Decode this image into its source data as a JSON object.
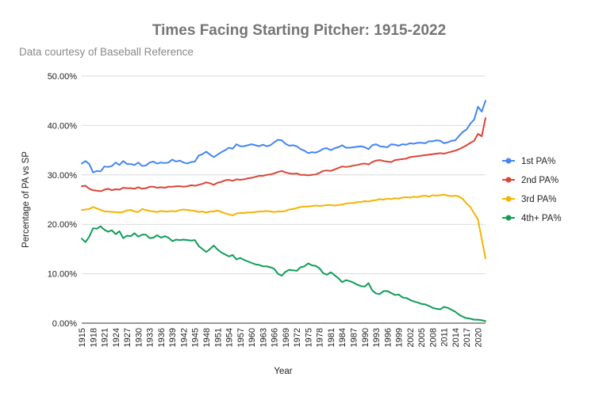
{
  "chart_data": {
    "type": "line",
    "title": "Times Facing Starting Pitcher: 1915-2022",
    "subtitle": "Data courtesy of Baseball Reference",
    "xlabel": "Year",
    "ylabel": "Percentage of PA vs SP",
    "ylim": [
      0,
      50
    ],
    "y_ticks": [
      "0.00%",
      "10.00%",
      "20.00%",
      "30.00%",
      "40.00%",
      "50.00%"
    ],
    "x_tick_labels": [
      "1915",
      "1918",
      "1921",
      "1924",
      "1927",
      "1930",
      "1933",
      "1936",
      "1939",
      "1942",
      "1945",
      "1948",
      "1951",
      "1954",
      "1957",
      "1960",
      "1963",
      "1966",
      "1969",
      "1972",
      "1975",
      "1978",
      "1981",
      "1984",
      "1987",
      "1990",
      "1993",
      "1996",
      "1999",
      "2002",
      "2005",
      "2008",
      "2011",
      "2014",
      "2017",
      "2020"
    ],
    "legend_position": "right",
    "x_start": 1915,
    "x_end": 2022,
    "series": [
      {
        "name": "1st PA%",
        "color": "#4285f4",
        "values": [
          32.3,
          32.8,
          32.2,
          30.5,
          30.8,
          30.7,
          31.7,
          31.6,
          31.8,
          32.5,
          32.0,
          32.8,
          32.2,
          32.2,
          32.0,
          32.5,
          31.8,
          31.9,
          32.5,
          32.7,
          32.3,
          32.5,
          32.4,
          32.5,
          33.1,
          32.7,
          32.9,
          32.5,
          32.3,
          32.6,
          32.7,
          33.9,
          34.2,
          34.7,
          34.1,
          33.6,
          34.1,
          34.6,
          35.0,
          35.5,
          35.3,
          36.2,
          35.8,
          35.8,
          36.0,
          36.2,
          36.0,
          35.8,
          36.1,
          35.8,
          36.0,
          36.6,
          37.1,
          37.0,
          36.3,
          35.9,
          36.0,
          35.8,
          35.2,
          34.9,
          34.4,
          34.6,
          34.5,
          34.8,
          35.3,
          35.4,
          35.0,
          35.4,
          35.6,
          36.0,
          35.5,
          35.5,
          35.6,
          35.7,
          35.8,
          35.6,
          35.2,
          36.0,
          36.2,
          35.8,
          35.7,
          35.6,
          36.2,
          36.1,
          35.9,
          36.2,
          36.1,
          36.4,
          36.3,
          36.5,
          36.5,
          36.4,
          36.8,
          36.8,
          37.0,
          36.9,
          36.4,
          36.6,
          36.9,
          37.0,
          37.9,
          38.7,
          39.2,
          40.4,
          41.2,
          43.8,
          42.8,
          45.0
        ]
      },
      {
        "name": "2nd PA%",
        "color": "#db4437",
        "values": [
          27.7,
          27.8,
          27.2,
          26.9,
          26.8,
          26.7,
          27.0,
          27.2,
          26.9,
          27.1,
          27.0,
          27.4,
          27.3,
          27.3,
          27.2,
          27.5,
          27.2,
          27.3,
          27.6,
          27.6,
          27.4,
          27.5,
          27.4,
          27.6,
          27.6,
          27.7,
          27.7,
          27.6,
          27.7,
          27.9,
          27.8,
          28.0,
          28.2,
          28.5,
          28.3,
          28.0,
          28.4,
          28.6,
          28.9,
          29.0,
          28.8,
          29.1,
          29.0,
          29.1,
          29.3,
          29.4,
          29.6,
          29.8,
          29.8,
          30.0,
          30.1,
          30.3,
          30.6,
          30.8,
          30.5,
          30.3,
          30.2,
          30.3,
          30.0,
          30.0,
          29.9,
          30.0,
          30.1,
          30.4,
          30.8,
          30.9,
          30.8,
          31.1,
          31.4,
          31.7,
          31.6,
          31.7,
          31.9,
          32.0,
          32.2,
          32.3,
          32.1,
          32.6,
          32.9,
          33.0,
          32.8,
          32.7,
          32.6,
          33.0,
          33.1,
          33.2,
          33.3,
          33.6,
          33.7,
          33.8,
          33.9,
          34.0,
          34.1,
          34.2,
          34.3,
          34.4,
          34.3,
          34.5,
          34.7,
          34.9,
          35.2,
          35.6,
          36.0,
          36.5,
          36.9,
          38.3,
          37.8,
          41.5
        ]
      },
      {
        "name": "3rd PA%",
        "color": "#f4b400",
        "values": [
          22.9,
          23.0,
          23.1,
          23.5,
          23.2,
          22.9,
          22.6,
          22.6,
          22.5,
          22.5,
          22.4,
          22.5,
          22.8,
          22.9,
          22.6,
          22.5,
          23.1,
          22.9,
          22.7,
          22.6,
          22.5,
          22.7,
          22.6,
          22.6,
          22.7,
          22.6,
          22.9,
          23.0,
          22.9,
          22.8,
          22.7,
          22.5,
          22.6,
          22.4,
          22.6,
          22.6,
          22.8,
          22.5,
          22.2,
          22.0,
          21.8,
          22.2,
          22.3,
          22.3,
          22.4,
          22.4,
          22.5,
          22.6,
          22.6,
          22.7,
          22.6,
          22.5,
          22.6,
          22.6,
          22.7,
          23.0,
          23.1,
          23.3,
          23.5,
          23.6,
          23.6,
          23.7,
          23.8,
          23.7,
          23.8,
          23.9,
          23.9,
          23.8,
          23.9,
          24.0,
          24.2,
          24.3,
          24.3,
          24.5,
          24.5,
          24.7,
          24.6,
          24.8,
          24.9,
          25.1,
          25.0,
          25.2,
          25.1,
          25.3,
          25.2,
          25.4,
          25.5,
          25.4,
          25.6,
          25.5,
          25.7,
          25.8,
          25.6,
          25.9,
          25.8,
          25.9,
          26.0,
          25.8,
          25.7,
          25.8,
          25.6,
          25.1,
          24.2,
          23.5,
          22.2,
          21.0,
          17.0,
          13.1
        ]
      },
      {
        "name": "4th+ PA%",
        "color": "#0f9d58",
        "values": [
          17.1,
          16.4,
          17.5,
          19.2,
          19.1,
          19.6,
          18.9,
          18.5,
          18.8,
          18.0,
          18.6,
          17.2,
          17.7,
          17.6,
          18.2,
          17.5,
          17.9,
          17.9,
          17.2,
          17.3,
          17.8,
          17.3,
          17.6,
          17.3,
          16.6,
          16.9,
          16.8,
          16.9,
          16.8,
          16.7,
          16.8,
          15.6,
          15.0,
          14.4,
          15.0,
          15.7,
          14.9,
          14.3,
          13.9,
          13.5,
          13.8,
          12.9,
          13.2,
          12.8,
          12.5,
          12.2,
          11.9,
          11.8,
          11.5,
          11.5,
          11.3,
          11.0,
          10.0,
          9.6,
          10.4,
          10.8,
          10.7,
          10.6,
          11.3,
          11.5,
          12.1,
          11.7,
          11.6,
          11.1,
          10.1,
          9.8,
          10.3,
          9.7,
          9.1,
          8.3,
          8.7,
          8.5,
          8.2,
          7.8,
          7.5,
          7.4,
          8.1,
          6.6,
          6.0,
          5.9,
          6.5,
          6.5,
          6.1,
          5.7,
          5.8,
          5.2,
          5.1,
          4.7,
          4.4,
          4.2,
          3.9,
          3.8,
          3.5,
          3.1,
          2.9,
          2.8,
          3.3,
          3.1,
          2.7,
          2.3,
          1.7,
          1.3,
          1.0,
          0.9,
          0.7,
          0.7,
          0.6,
          0.4
        ]
      }
    ]
  }
}
